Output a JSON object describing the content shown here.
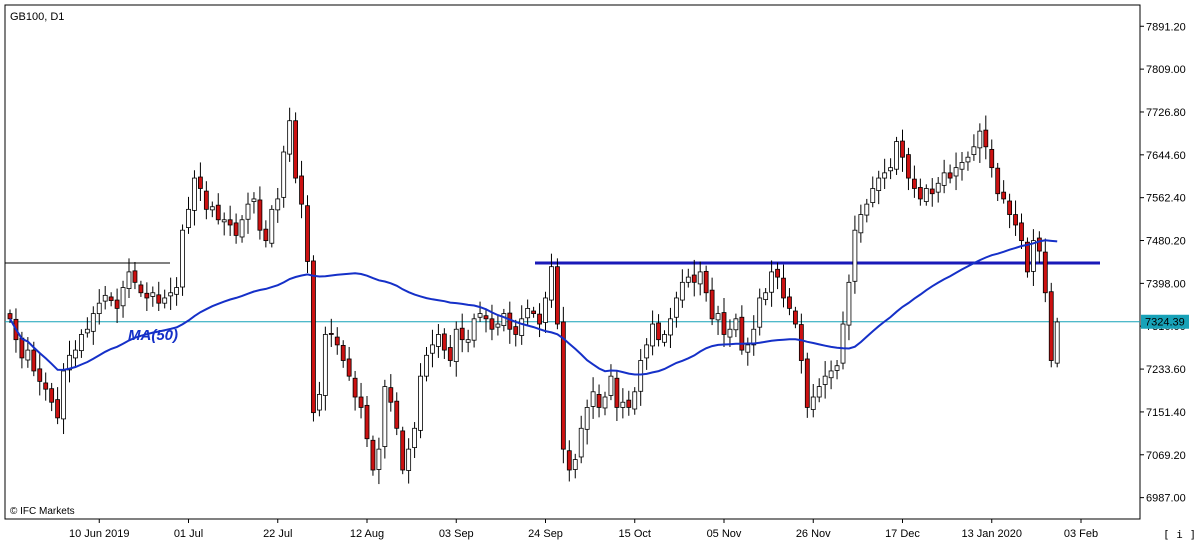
{
  "chart_data": {
    "type": "candlestick",
    "title": "GB100, D1",
    "watermark": "© IFC Markets",
    "ylim": [
      6946,
      7932
    ],
    "y_ticks": [
      6987.0,
      7069.2,
      7151.4,
      7233.6,
      7316.0,
      7398.0,
      7480.2,
      7562.4,
      7644.6,
      7726.8,
      7809.0,
      7891.2
    ],
    "y_tick_labels": [
      "6987.00",
      "7069.20",
      "7151.40",
      "7233.60",
      "7316.00",
      "7398.00",
      "7480.20",
      "7562.40",
      "7644.60",
      "7726.80",
      "7809.00",
      "7891.20"
    ],
    "x_labels": [
      {
        "i": 15,
        "text": "10 Jun 2019"
      },
      {
        "i": 30,
        "text": "01 Jul"
      },
      {
        "i": 45,
        "text": "22 Jul"
      },
      {
        "i": 60,
        "text": "12 Aug"
      },
      {
        "i": 75,
        "text": "03 Sep"
      },
      {
        "i": 90,
        "text": "24 Sep"
      },
      {
        "i": 105,
        "text": "15 Oct"
      },
      {
        "i": 120,
        "text": "05 Nov"
      },
      {
        "i": 135,
        "text": "26 Nov"
      },
      {
        "i": 150,
        "text": "17 Dec"
      },
      {
        "i": 165,
        "text": "13 Jan 2020"
      },
      {
        "i": 180,
        "text": "03 Feb"
      }
    ],
    "current_price": 7324.39,
    "current_price_label": "7324.39",
    "ma_label": "MA(50)",
    "bull_color": "#ffffff",
    "bear_color": "#cc1111",
    "ma_color": "#1530c8",
    "price_line_color": "#17a2b8",
    "closes": [
      7330,
      7290,
      7255,
      7270,
      7230,
      7210,
      7195,
      7170,
      7140,
      7230,
      7260,
      7270,
      7300,
      7310,
      7340,
      7360,
      7375,
      7365,
      7350,
      7390,
      7420,
      7400,
      7380,
      7370,
      7380,
      7360,
      7370,
      7380,
      7390,
      7500,
      7540,
      7600,
      7580,
      7540,
      7545,
      7520,
      7520,
      7510,
      7490,
      7520,
      7550,
      7560,
      7500,
      7480,
      7540,
      7560,
      7650,
      7710,
      7600,
      7550,
      7440,
      7150,
      7185,
      7300,
      7300,
      7280,
      7250,
      7220,
      7180,
      7160,
      7100,
      7040,
      7080,
      7200,
      7170,
      7120,
      7040,
      7080,
      7120,
      7220,
      7260,
      7280,
      7300,
      7270,
      7250,
      7310,
      7290,
      7290,
      7330,
      7340,
      7330,
      7310,
      7320,
      7340,
      7310,
      7300,
      7330,
      7350,
      7340,
      7320,
      7370,
      7430,
      7320,
      7080,
      7040,
      7060,
      7120,
      7160,
      7190,
      7160,
      7180,
      7220,
      7160,
      7170,
      7160,
      7190,
      7250,
      7280,
      7320,
      7290,
      7300,
      7330,
      7370,
      7400,
      7410,
      7400,
      7420,
      7380,
      7330,
      7340,
      7300,
      7310,
      7330,
      7270,
      7280,
      7310,
      7370,
      7380,
      7420,
      7410,
      7370,
      7350,
      7320,
      7250,
      7160,
      7180,
      7200,
      7220,
      7230,
      7240,
      7320,
      7400,
      7500,
      7530,
      7550,
      7580,
      7600,
      7610,
      7620,
      7670,
      7640,
      7600,
      7580,
      7560,
      7580,
      7570,
      7590,
      7610,
      7600,
      7620,
      7630,
      7640,
      7660,
      7690,
      7660,
      7620,
      7570,
      7560,
      7530,
      7510,
      7480,
      7420,
      7480,
      7460,
      7380,
      7250,
      7324
    ]
  }
}
